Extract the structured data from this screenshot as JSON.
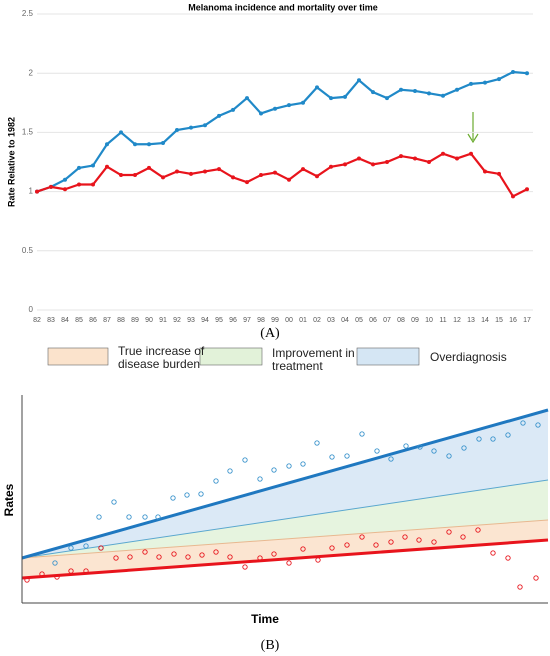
{
  "chart_data": {
    "type": "line",
    "title": "Melanoma incidence and mortality over time",
    "y_label": "Rate Relative to 1982",
    "categories": [
      "82",
      "83",
      "84",
      "85",
      "86",
      "87",
      "88",
      "89",
      "90",
      "91",
      "92",
      "93",
      "94",
      "95",
      "96",
      "97",
      "98",
      "99",
      "00",
      "01",
      "02",
      "03",
      "04",
      "05",
      "06",
      "07",
      "08",
      "09",
      "10",
      "11",
      "12",
      "13",
      "14",
      "15",
      "16",
      "17"
    ],
    "series": [
      {
        "color": "#2089c8",
        "values": [
          1.0,
          1.04,
          1.1,
          1.2,
          1.22,
          1.4,
          1.5,
          1.4,
          1.4,
          1.41,
          1.52,
          1.54,
          1.56,
          1.64,
          1.69,
          1.79,
          1.66,
          1.7,
          1.73,
          1.75,
          1.88,
          1.79,
          1.8,
          1.94,
          1.84,
          1.79,
          1.86,
          1.85,
          1.83,
          1.81,
          1.86,
          1.91,
          1.92,
          1.95,
          2.01,
          2.0
        ]
      },
      {
        "color": "#e8141c",
        "values": [
          1.0,
          1.04,
          1.02,
          1.06,
          1.06,
          1.21,
          1.14,
          1.14,
          1.2,
          1.12,
          1.17,
          1.15,
          1.17,
          1.19,
          1.12,
          1.08,
          1.14,
          1.16,
          1.1,
          1.19,
          1.13,
          1.21,
          1.23,
          1.28,
          1.23,
          1.25,
          1.3,
          1.28,
          1.25,
          1.32,
          1.28,
          1.32,
          1.17,
          1.15,
          0.96,
          1.02
        ]
      }
    ],
    "ylim": [
      0,
      2.5
    ],
    "yticks": [
      0,
      0.5,
      1,
      1.5,
      2,
      2.5
    ],
    "grid": true
  },
  "panel_labels": [
    "(A)",
    "(B)"
  ],
  "diagram": {
    "legend": [
      "True increase of disease burden",
      "Improvement in treatment",
      "Overdiagnosis"
    ],
    "y_label": "Rates",
    "x_label": "Time"
  }
}
